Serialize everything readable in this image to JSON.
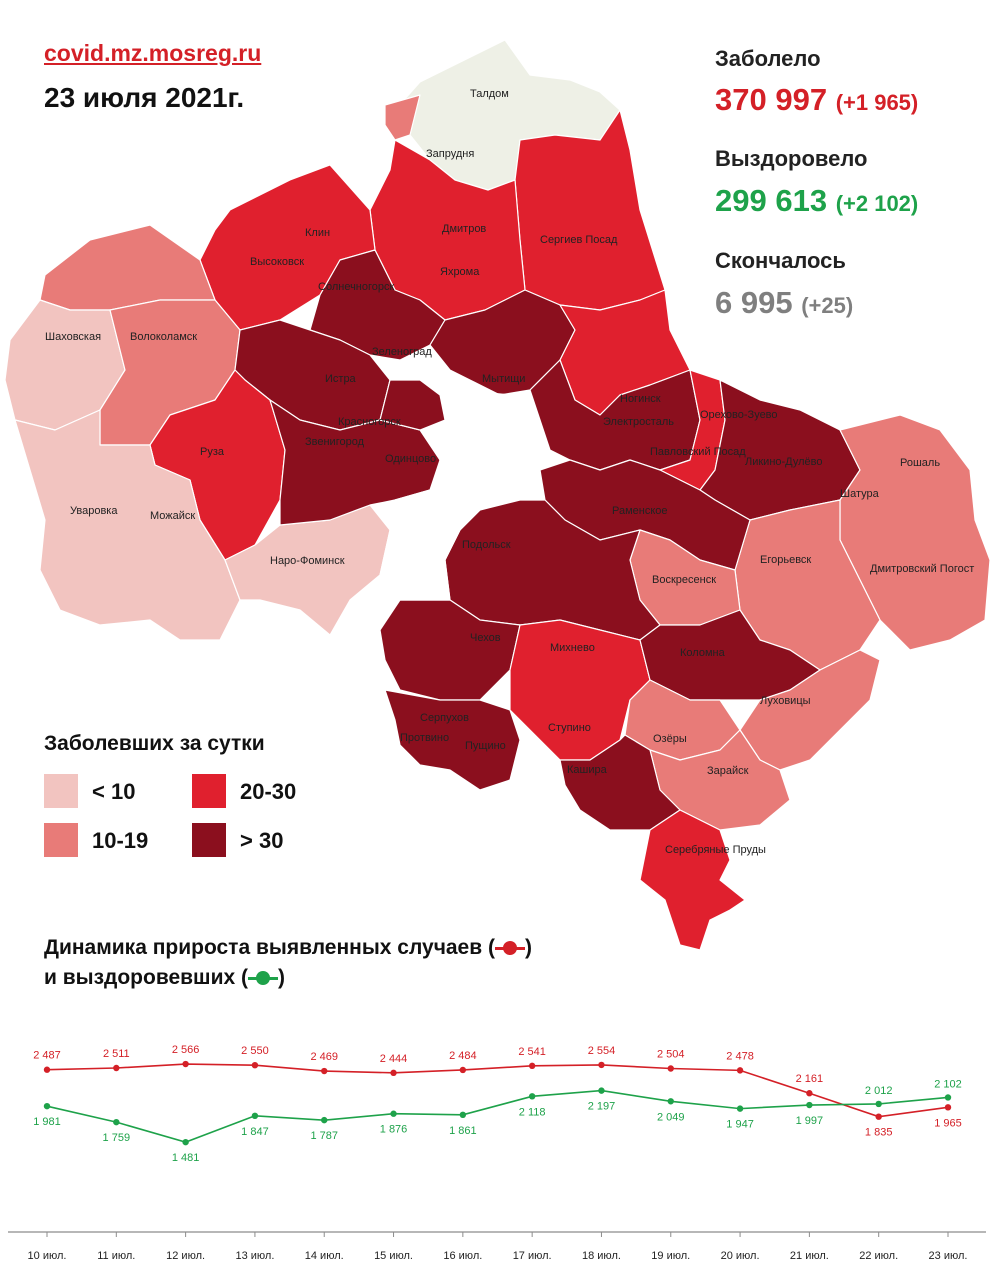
{
  "header": {
    "source": "covid.mz.mosreg.ru",
    "date": "23 июля 2021г."
  },
  "stats": {
    "cases": {
      "label": "Заболело",
      "value": "370 997",
      "delta": "(+1 965)",
      "color": "#d42027"
    },
    "recovered": {
      "label": "Выздоровело",
      "value": "299 613",
      "delta": "(+2 102)",
      "color": "#1ea24a"
    },
    "deaths": {
      "label": "Скончалось",
      "value": "6 995",
      "delta": "(+25)",
      "color": "#7f7f7f"
    }
  },
  "legend": {
    "title": "Заболевших за сутки",
    "items": [
      {
        "label": "< 10",
        "color": "#f2c4c0"
      },
      {
        "label": "10-19",
        "color": "#e87b78"
      },
      {
        "label": "20-30",
        "color": "#e0202e"
      },
      {
        "label": "> 30",
        "color": "#8b0f1e"
      }
    ]
  },
  "dynamics": {
    "title_line1": "Динамика прироста выявленных случаев (",
    "title_line2": "и выздоровевших (",
    "close": ")"
  },
  "map": {
    "colors": {
      "lt10": "#f2c4c0",
      "c10_19": "#e87b78",
      "c20_30": "#e0202e",
      "gt30": "#8b0f1e",
      "none": "#eef0e6"
    },
    "labels": [
      "Талдом",
      "Запрудня",
      "Клин",
      "Дмитров",
      "Сергиев Посад",
      "Высоковск",
      "Яхрома",
      "Солнечногорск",
      "Шаховская",
      "Волоколамск",
      "Зеленоград",
      "Истра",
      "Мытищи",
      "Ногинск",
      "Орехово-Зуево",
      "Красногорск",
      "Звенигород",
      "Электросталь",
      "Павловский Посад",
      "Ликино-Дулёво",
      "Руза",
      "Одинцово",
      "Рошаль",
      "Уваровка",
      "Можайск",
      "Раменское",
      "Шатура",
      "Наро-Фоминск",
      "Подольск",
      "Воскресенск",
      "Егорьевск",
      "Дмитровский Погост",
      "Чехов",
      "Михнево",
      "Коломна",
      "Луховицы",
      "Серпухов",
      "Пущино",
      "Ступино",
      "Озёры",
      "Зарайск",
      "Кашира",
      "Серебряные Пруды",
      "Протвино"
    ]
  },
  "chart_data": {
    "type": "line",
    "categories": [
      "10 июл.",
      "11 июл.",
      "12 июл.",
      "13 июл.",
      "14 июл.",
      "15 июл.",
      "16 июл.",
      "17 июл.",
      "18 июл.",
      "19 июл.",
      "20 июл.",
      "21 июл.",
      "22 июл.",
      "23 июл."
    ],
    "series": [
      {
        "values": [
          2487,
          2511,
          2566,
          2550,
          2469,
          2444,
          2484,
          2541,
          2554,
          2504,
          2478,
          2161,
          1835,
          1965
        ],
        "labels": [
          "2 487",
          "2 511",
          "2 566",
          "2 550",
          "2 469",
          "2 444",
          "2 484",
          "2 541",
          "2 554",
          "2 504",
          "2 478",
          "2 161",
          "1 835",
          "1 965"
        ],
        "color": "#d42027"
      },
      {
        "values": [
          1981,
          1759,
          1481,
          1847,
          1787,
          1876,
          1861,
          2118,
          2197,
          2049,
          1947,
          1997,
          2012,
          2102
        ],
        "labels": [
          "1 981",
          "1 759",
          "1 481",
          "1 847",
          "1 787",
          "1 876",
          "1 861",
          "2 118",
          "2 197",
          "2 049",
          "1 947",
          "1 997",
          "2 012",
          "2 102"
        ],
        "color": "#1ea24a"
      }
    ]
  }
}
